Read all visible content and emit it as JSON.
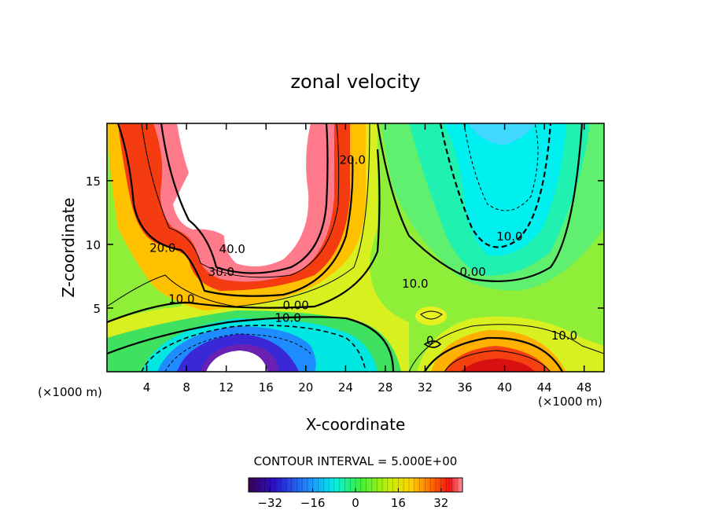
{
  "chart_data": {
    "type": "contour",
    "title": "zonal velocity",
    "xlabel": "X-coordinate",
    "ylabel": "Z-coordinate",
    "x_unit_left": "(×1000 m)",
    "x_unit_right": "(×1000 m)",
    "xlim": [
      0,
      50
    ],
    "ylim": [
      0,
      19.5
    ],
    "x_ticks": [
      4,
      8,
      12,
      16,
      20,
      24,
      28,
      32,
      36,
      40,
      44,
      48
    ],
    "x_tick_labels": [
      "4",
      "8",
      "12",
      "16",
      "20",
      "24",
      "28",
      "32",
      "36",
      "40",
      "44",
      "48"
    ],
    "y_ticks": [
      5,
      10,
      15
    ],
    "y_tick_labels": [
      "5",
      "10",
      "15"
    ],
    "contour_interval_text": "CONTOUR INTERVAL = 5.000E+00",
    "colorbar": {
      "range": [
        -40,
        40
      ],
      "ticks": [
        -32,
        -16,
        0,
        16,
        32
      ],
      "tick_labels": [
        "−32",
        "−16",
        "0",
        "16",
        "32"
      ]
    },
    "contour_labels": [
      {
        "text": "20.0",
        "x": 24.7,
        "z": 16.5
      },
      {
        "text": "40.0",
        "x": 12.6,
        "z": 9.5
      },
      {
        "text": "20.0",
        "x": 5.6,
        "z": 9.6
      },
      {
        "text": "30.0",
        "x": 11.5,
        "z": 7.7
      },
      {
        "text": "10.0",
        "x": 7.5,
        "z": 5.6
      },
      {
        "text": "0.00",
        "x": 19.0,
        "z": 5.1
      },
      {
        "text": "10.0",
        "x": 18.2,
        "z": 4.1
      },
      {
        "text": "10.0",
        "x": 31.0,
        "z": 6.8
      },
      {
        "text": "0.00",
        "x": 36.8,
        "z": 7.7
      },
      {
        "text": "10.0",
        "x": 40.5,
        "z": 10.5
      },
      {
        "text": "10.0",
        "x": 46.0,
        "z": 2.7
      },
      {
        "text": "0",
        "x": 32.5,
        "z": 2.3
      }
    ],
    "max_regions": [
      {
        "value": 45,
        "x": 13.5,
        "z": 14.0
      },
      {
        "value": 30,
        "x": 38.5,
        "z": 0.2
      }
    ],
    "min_regions": [
      {
        "value": -35,
        "x": 14.5,
        "z": 1.2
      },
      {
        "value": -15,
        "x": 38.5,
        "z": 18.0
      }
    ]
  }
}
